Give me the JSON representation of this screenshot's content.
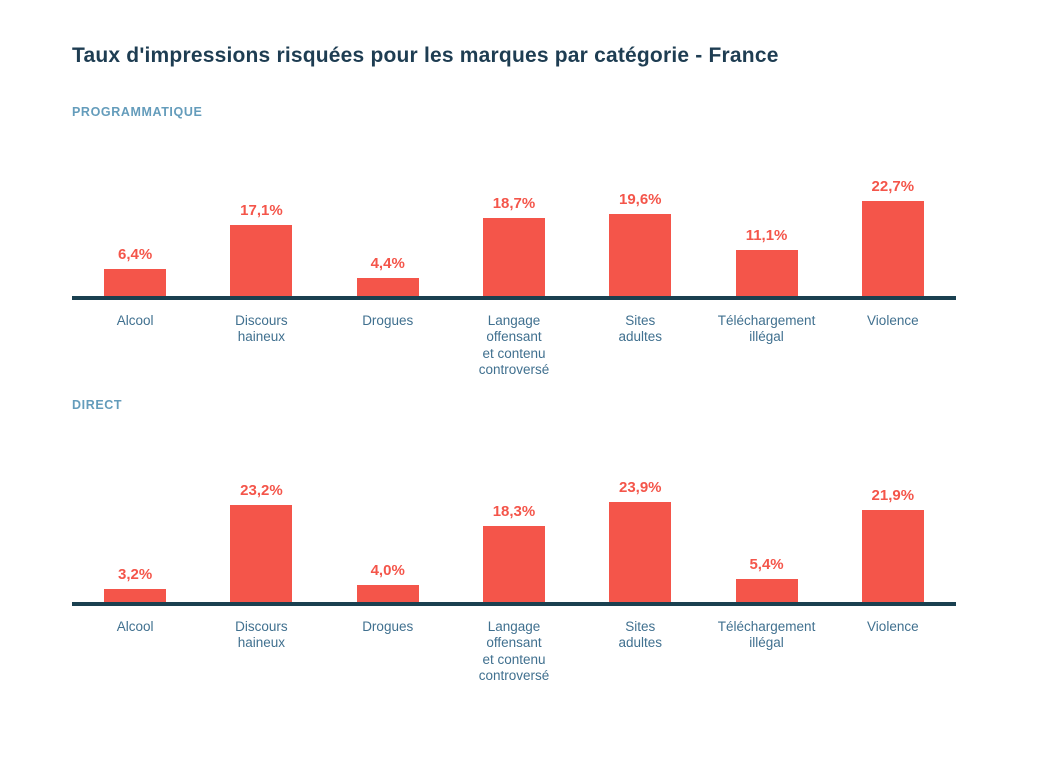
{
  "title": "Taux d'impressions risquées pour les marques par catégorie - France",
  "colors": {
    "page_bg": "#ffffff",
    "title": "#1E3D52",
    "section_label": "#649CBB",
    "axis": "#1A4050",
    "bar": "#F4554A",
    "value_label": "#F4554A",
    "category_label": "#40708F"
  },
  "chart_data": [
    {
      "type": "bar",
      "section_label": "PROGRAMMATIQUE",
      "categories": [
        "Alcool",
        "Discours haineux",
        "Drogues",
        "Langage offensant et contenu controversé",
        "Sites adultes",
        "Téléchargement illégal",
        "Violence"
      ],
      "categories_display": [
        "Alcool",
        "Discours\nhaineux",
        "Drogues",
        "Langage\noffensant\net contenu\ncontroversé",
        "Sites\nadultes",
        "Téléchargement\nillégal",
        "Violence"
      ],
      "values": [
        6.4,
        17.1,
        4.4,
        18.7,
        19.6,
        11.1,
        22.7
      ],
      "value_labels": [
        "6,4%",
        "17,1%",
        "4,4%",
        "18,7%",
        "19,6%",
        "11,1%",
        "22,7%"
      ],
      "unit": "%",
      "ylim": [
        0,
        25
      ],
      "grid": false,
      "legend": null
    },
    {
      "type": "bar",
      "section_label": "DIRECT",
      "categories": [
        "Alcool",
        "Discours haineux",
        "Drogues",
        "Langage offensant et contenu controversé",
        "Sites adultes",
        "Téléchargement illégal",
        "Violence"
      ],
      "categories_display": [
        "Alcool",
        "Discours\nhaineux",
        "Drogues",
        "Langage\noffensant\net contenu\ncontroversé",
        "Sites\nadultes",
        "Téléchargement\nillégal",
        "Violence"
      ],
      "values": [
        3.2,
        23.2,
        4.0,
        18.3,
        23.9,
        5.4,
        21.9
      ],
      "value_labels": [
        "3,2%",
        "23,2%",
        "4,0%",
        "18,3%",
        "23,9%",
        "5,4%",
        "21,9%"
      ],
      "unit": "%",
      "ylim": [
        0,
        25
      ],
      "grid": false,
      "legend": null
    }
  ]
}
